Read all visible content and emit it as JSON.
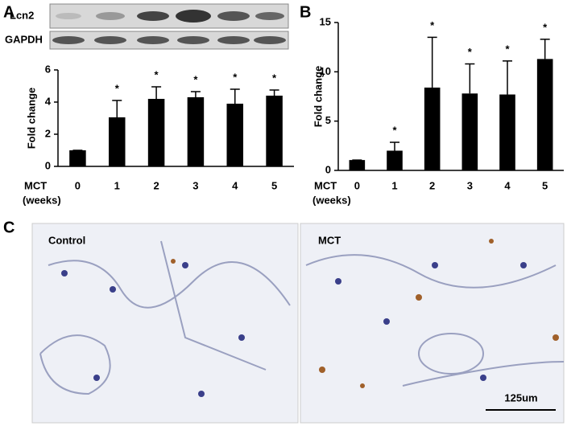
{
  "panel_labels": [
    "A",
    "B",
    "C"
  ],
  "blot": {
    "rows": [
      "Lcn2",
      "GAPDH"
    ]
  },
  "chart_data": [
    {
      "type": "bar",
      "ylabel": "Fold change",
      "xlabel": "MCT",
      "xlabel_unit": "(weeks)",
      "categories": [
        "0",
        "1",
        "2",
        "3",
        "4",
        "5"
      ],
      "values": [
        1,
        3.05,
        4.2,
        4.3,
        3.9,
        4.4
      ],
      "errors": [
        0,
        1.05,
        0.75,
        0.35,
        0.9,
        0.35
      ],
      "significance": [
        null,
        "*",
        "*",
        "*",
        "*",
        "*"
      ],
      "color": "#000000",
      "ylim": [
        0,
        6
      ],
      "yticks": [
        0,
        2,
        4,
        6
      ]
    },
    {
      "type": "bar",
      "ylabel": "Fold change",
      "xlabel": "MCT",
      "xlabel_unit": "(weeks)",
      "categories": [
        "0",
        "1",
        "2",
        "3",
        "4",
        "5"
      ],
      "values": [
        1.05,
        2.0,
        8.4,
        7.8,
        7.7,
        11.3
      ],
      "errors": [
        0,
        0.85,
        5.1,
        3.0,
        3.4,
        2.0
      ],
      "significance": [
        null,
        "*",
        "*",
        "*",
        "*",
        "*"
      ],
      "color": "#000000",
      "ylim": [
        0,
        15
      ],
      "yticks": [
        0,
        5,
        10,
        15
      ]
    }
  ],
  "histology": {
    "left_label": "Control",
    "right_label": "MCT",
    "scale_bar": "125um"
  }
}
